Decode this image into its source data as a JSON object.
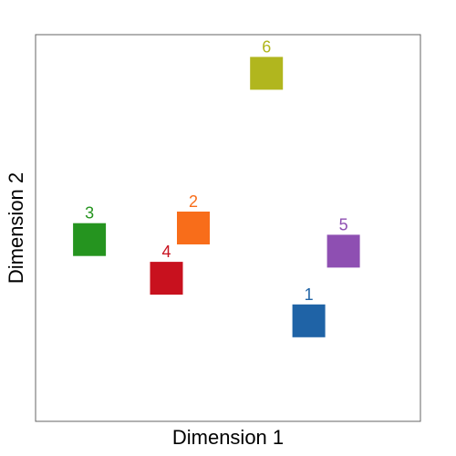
{
  "chart_data": {
    "type": "scatter",
    "title": "",
    "xlabel": "Dimension 1",
    "ylabel": "Dimension 2",
    "xlim": [
      0,
      10
    ],
    "ylim": [
      0,
      10
    ],
    "grid": false,
    "axis_ticks": false,
    "marker": "square",
    "points": [
      {
        "label": "1",
        "x": 7.1,
        "y": 2.6,
        "color": "#1f63a6"
      },
      {
        "label": "2",
        "x": 4.1,
        "y": 5.0,
        "color": "#f86d1a"
      },
      {
        "label": "3",
        "x": 1.4,
        "y": 4.7,
        "color": "#25941f"
      },
      {
        "label": "4",
        "x": 3.4,
        "y": 3.7,
        "color": "#c8111e"
      },
      {
        "label": "5",
        "x": 8.0,
        "y": 4.4,
        "color": "#8e4fb2"
      },
      {
        "label": "6",
        "x": 6.0,
        "y": 9.0,
        "color": "#b1b61e"
      }
    ]
  }
}
